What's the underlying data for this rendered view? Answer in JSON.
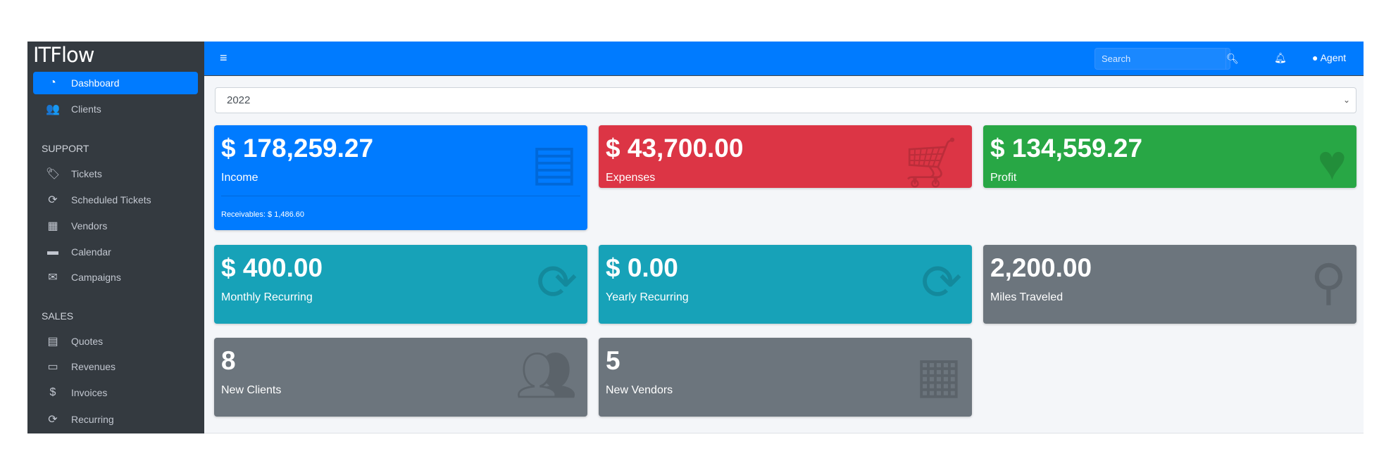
{
  "brand": "ITFlow",
  "sidebar": {
    "items": [
      {
        "label": "Dashboard",
        "icon": "tachometer-icon",
        "active": true
      },
      {
        "label": "Clients",
        "icon": "users-icon"
      }
    ],
    "support_header": "SUPPORT",
    "support": [
      {
        "label": "Tickets",
        "icon": "tags-icon"
      },
      {
        "label": "Scheduled Tickets",
        "icon": "sync-icon"
      },
      {
        "label": "Vendors",
        "icon": "building-icon"
      },
      {
        "label": "Calendar",
        "icon": "calendar-icon"
      },
      {
        "label": "Campaigns",
        "icon": "envelope-icon"
      }
    ],
    "sales_header": "SALES",
    "sales": [
      {
        "label": "Quotes",
        "icon": "file-icon"
      },
      {
        "label": "Revenues",
        "icon": "credit-card-icon"
      },
      {
        "label": "Invoices",
        "icon": "file-invoice-dollar-icon"
      },
      {
        "label": "Recurring",
        "icon": "sync-icon"
      }
    ]
  },
  "topbar": {
    "search_placeholder": "Search",
    "user": "Agent"
  },
  "year": "2022",
  "cards": [
    {
      "value": "$ 178,259.27",
      "label": "Income",
      "footer": "Receivables: $ 1,486.60",
      "color": "#007bff",
      "icon": "credit-card-icon"
    },
    {
      "value": "$ 43,700.00",
      "label": "Expenses",
      "color": "#dc3545",
      "icon": "shopping-cart-icon"
    },
    {
      "value": "$ 134,559.27",
      "label": "Profit",
      "color": "#28a745",
      "icon": "heart-icon"
    },
    {
      "value": "$ 400.00",
      "label": "Monthly Recurring",
      "color": "#17a2b8",
      "icon": "sync-icon"
    },
    {
      "value": "$ 0.00",
      "label": "Yearly Recurring",
      "color": "#17a2b8",
      "icon": "sync-icon"
    },
    {
      "value": "2,200.00",
      "label": "Miles Traveled",
      "color": "#6c757d",
      "icon": "route-icon"
    },
    {
      "value": "8",
      "label": "New Clients",
      "color": "#6c757d",
      "icon": "users-icon"
    },
    {
      "value": "5",
      "label": "New Vendors",
      "color": "#6c757d",
      "icon": "building-icon"
    }
  ]
}
